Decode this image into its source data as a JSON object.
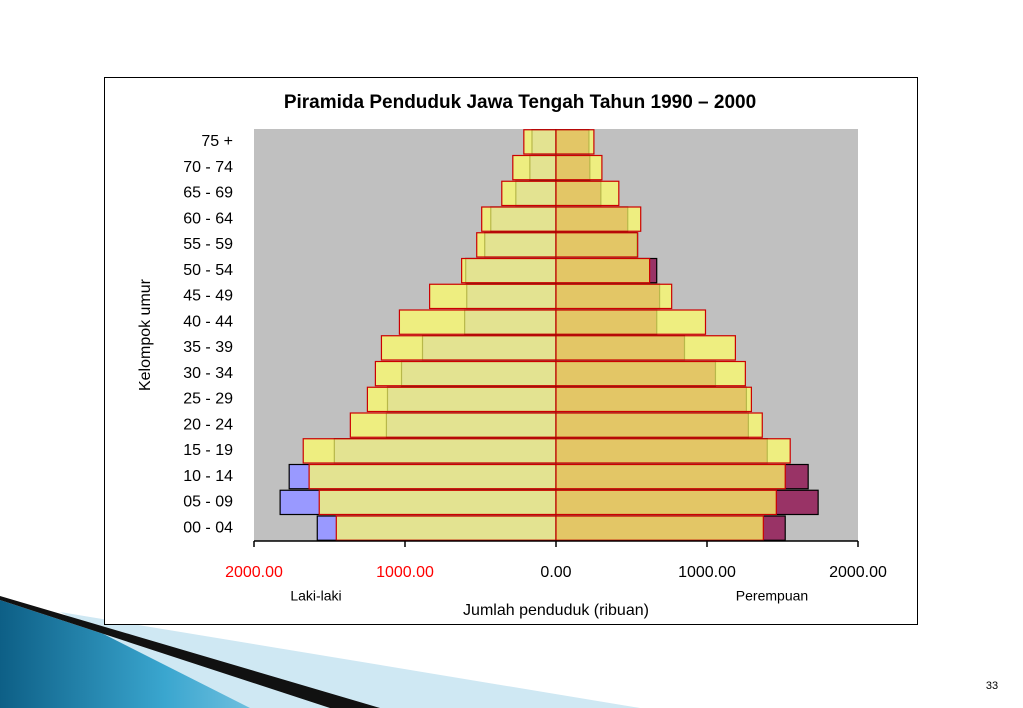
{
  "chart_data": {
    "type": "pyramid",
    "title": "Piramida Penduduk Jawa Tengah Tahun 1990 – 2000",
    "ylabel": "Kelompok umur",
    "xlabel": "Jumlah penduduk (ribuan)",
    "left_label": "Laki-laki",
    "right_label": "Perempuan",
    "categories": [
      "00 - 04",
      "05 - 09",
      "10 - 14",
      "15 - 19",
      "20 - 24",
      "25 - 29",
      "30 - 34",
      "35 - 39",
      "40 - 44",
      "45 - 49",
      "50 - 54",
      "55 - 59",
      "60 - 64",
      "65 - 69",
      "70 - 74",
      "75 +"
    ],
    "series": [
      {
        "side": "left",
        "color": "#9999ff",
        "values": [
          1581,
          1827,
          1767,
          1468,
          1123,
          1116,
          1023,
          884,
          605,
          591,
          598,
          472,
          432,
          266,
          173,
          159
        ]
      },
      {
        "side": "left",
        "color": "#ffff66",
        "values": [
          1455,
          1568,
          1635,
          1674,
          1362,
          1249,
          1196,
          1156,
          1037,
          837,
          625,
          525,
          492,
          359,
          286,
          213
        ]
      },
      {
        "side": "right",
        "color": "#993366",
        "values": [
          1518,
          1736,
          1670,
          1399,
          1274,
          1261,
          1056,
          851,
          667,
          686,
          667,
          535,
          475,
          297,
          224,
          218
        ]
      },
      {
        "side": "right",
        "color": "#ffff66",
        "values": [
          1373,
          1459,
          1518,
          1551,
          1366,
          1294,
          1254,
          1188,
          990,
          766,
          620,
          541,
          561,
          416,
          304,
          251
        ]
      }
    ],
    "xlim": [
      -2000,
      2000
    ],
    "xticks": [
      {
        "value": -2000,
        "label": "2000.00"
      },
      {
        "value": -1000,
        "label": "1000.00"
      },
      {
        "value": 0,
        "label": "0.00"
      },
      {
        "value": 1000,
        "label": "1000.00"
      },
      {
        "value": 2000,
        "label": "2000.00"
      }
    ],
    "xtick_colors": [
      "#ff0000",
      "#ff0000",
      "#000000",
      "#000000",
      "#000000"
    ],
    "plot_background": "#c0c0c0"
  },
  "slide_number": "33"
}
